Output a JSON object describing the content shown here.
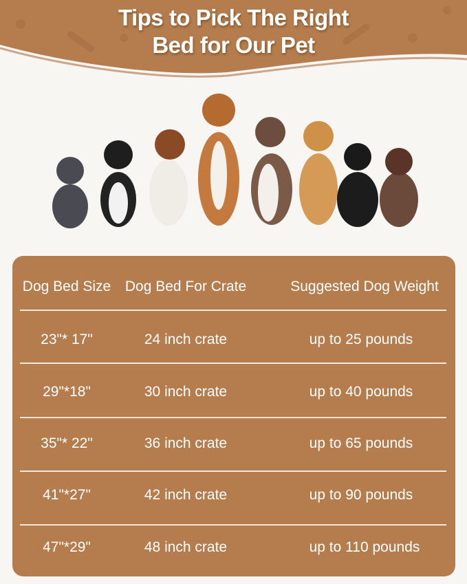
{
  "title_lines": [
    "Tips to Pick The Right",
    "Bed for Our Pet"
  ],
  "colors": {
    "brand_brown": "#b57d4d",
    "background": "#f7f6f3",
    "text": "#ffffff"
  },
  "table": {
    "headers": [
      "Dog Bed Size",
      "Dog Bed For Crate",
      "Suggested Dog Weight"
    ],
    "rows": [
      [
        "23\"* 17\"",
        "24 inch crate",
        "up to 25 pounds"
      ],
      [
        "29\"*18\"",
        "30 inch crate",
        "up to 40 pounds"
      ],
      [
        "35\"* 22\"",
        "36 inch crate",
        "up to 65 pounds"
      ],
      [
        "41\"*27\"",
        "42 inch crate",
        "up to 90 pounds"
      ],
      [
        "47\"*29\"",
        "48 inch crate",
        "up to 110 pounds"
      ]
    ]
  }
}
